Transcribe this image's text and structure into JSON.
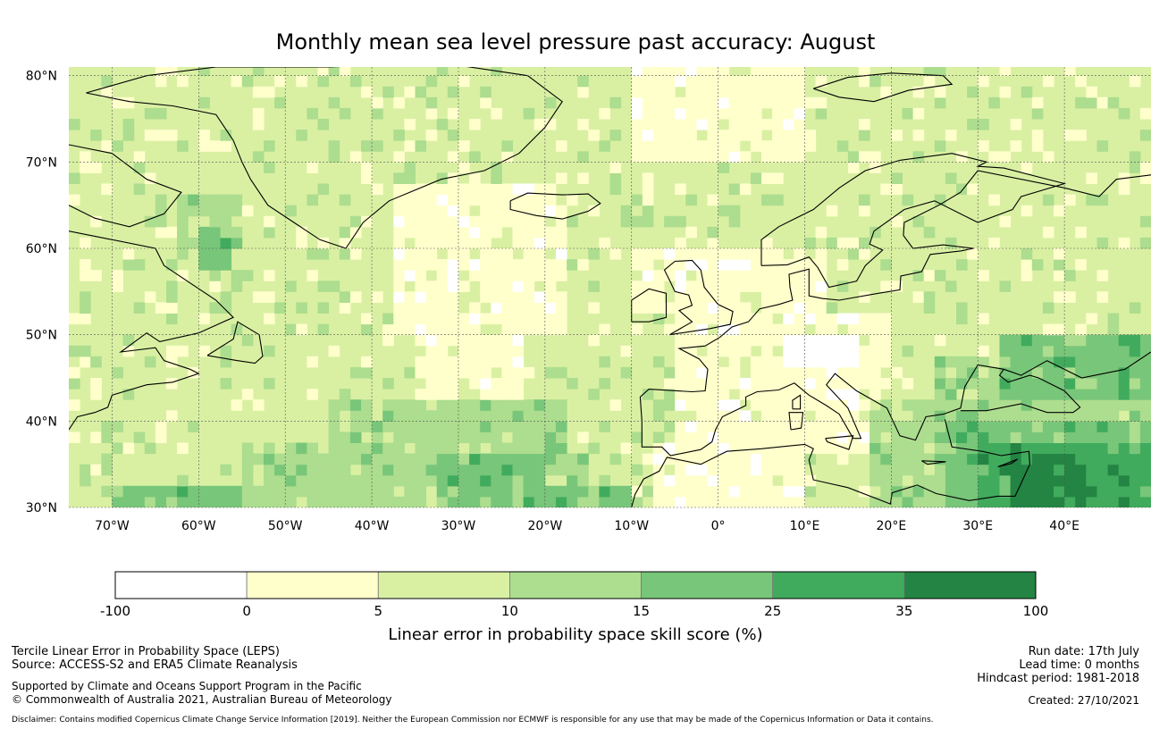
{
  "title": "Monthly mean sea level pressure past accuracy: August",
  "map": {
    "lat_labels": [
      "80°N",
      "70°N",
      "60°N",
      "50°N",
      "40°N",
      "30°N"
    ],
    "lon_labels": [
      "70°W",
      "60°W",
      "50°W",
      "40°W",
      "30°W",
      "20°W",
      "10°W",
      "0°",
      "10°E",
      "20°E",
      "30°E",
      "40°E"
    ],
    "land_outline_color": "#000000",
    "gridline_color": "#555555"
  },
  "legend": {
    "title": "Linear error in probability space skill score (%)",
    "tick_labels": [
      "-100",
      "0",
      "5",
      "10",
      "15",
      "25",
      "35",
      "100"
    ],
    "colors": [
      "#ffffff",
      "#ffffcc",
      "#d9f0a3",
      "#addd8e",
      "#78c679",
      "#41ab5d",
      "#238443"
    ]
  },
  "footer": {
    "line1": "Tercile Linear Error in Probability Space (LEPS)",
    "line2": "Source: ACCESS-S2 and ERA5 Climate Reanalysis",
    "line3": "Supported by Climate and Oceans Support Program in the Pacific",
    "line4": "© Commonwealth of Australia 2021, Australian Bureau of Meteorology",
    "run_date": "Run date: 17th July",
    "lead_time": "Lead time: 0 months",
    "hindcast": "Hindcast period: 1981-2018",
    "created": "Created: 27/10/2021",
    "disclaimer": "Disclaimer: Contains modified Copernicus Climate Change Service Information [2019]. Neither the European Commission nor ECMWF is responsible for any use that may be made of the Copernicus Information or Data it contains."
  }
}
